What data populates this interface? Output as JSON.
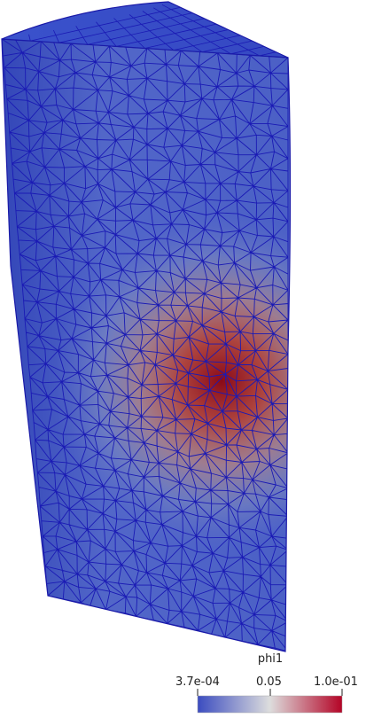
{
  "scalar_bar": {
    "title": "phi1",
    "tick_min": "3.7e-04",
    "tick_mid": "0.05",
    "tick_max": "1.0e-01",
    "colors": [
      "#3b4cc0",
      "#dddddd",
      "#b40426"
    ]
  },
  "mesh": {
    "edge_color": "#1a1ab4",
    "base_color": "#3a4fc8",
    "hot_color": "#8b0a1a"
  }
}
